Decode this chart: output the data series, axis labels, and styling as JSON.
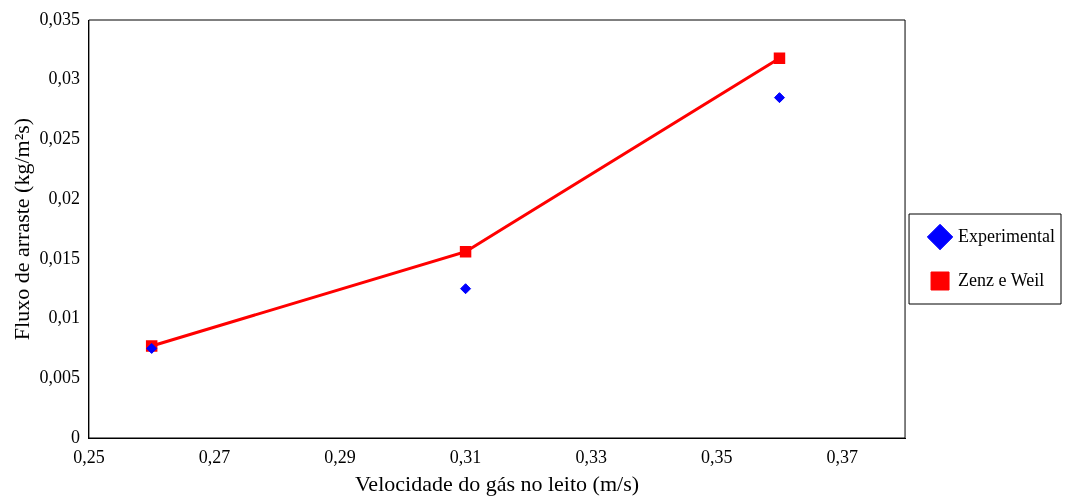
{
  "chart_data": {
    "type": "line",
    "xlabel": "Velocidade do gás no leito (m/s)",
    "ylabel": "Fluxo de arraste (kg/m²s)",
    "xlim": [
      0.25,
      0.38
    ],
    "xticks": [
      {
        "value": 0.25,
        "label": "0,25"
      },
      {
        "value": 0.27,
        "label": "0,27"
      },
      {
        "value": 0.29,
        "label": "0,29"
      },
      {
        "value": 0.31,
        "label": "0,31"
      },
      {
        "value": 0.33,
        "label": "0,33"
      },
      {
        "value": 0.35,
        "label": "0,35"
      },
      {
        "value": 0.37,
        "label": "0,37"
      }
    ],
    "ylim": [
      0,
      0.035
    ],
    "yticks": [
      {
        "value": 0,
        "label": "0"
      },
      {
        "value": 0.005,
        "label": "0,005"
      },
      {
        "value": 0.01,
        "label": "0,01"
      },
      {
        "value": 0.015,
        "label": "0,015"
      },
      {
        "value": 0.02,
        "label": "0,02"
      },
      {
        "value": 0.025,
        "label": "0,025"
      },
      {
        "value": 0.03,
        "label": "0,03"
      },
      {
        "value": 0.035,
        "label": "0,035"
      }
    ],
    "grid": false,
    "legend": "right",
    "series": [
      {
        "name": "Experimental",
        "type": "scatter",
        "marker": "diamond",
        "color": "#0000ff",
        "x": [
          0.26,
          0.31,
          0.36
        ],
        "values": [
          0.0075,
          0.0125,
          0.0285
        ]
      },
      {
        "name": "Zenz e Weil",
        "marker": "square",
        "line_style": "solid",
        "color": "#ff0000",
        "x": [
          0.26,
          0.31,
          0.36
        ],
        "values": [
          0.0077,
          0.0156,
          0.0318
        ]
      }
    ]
  }
}
